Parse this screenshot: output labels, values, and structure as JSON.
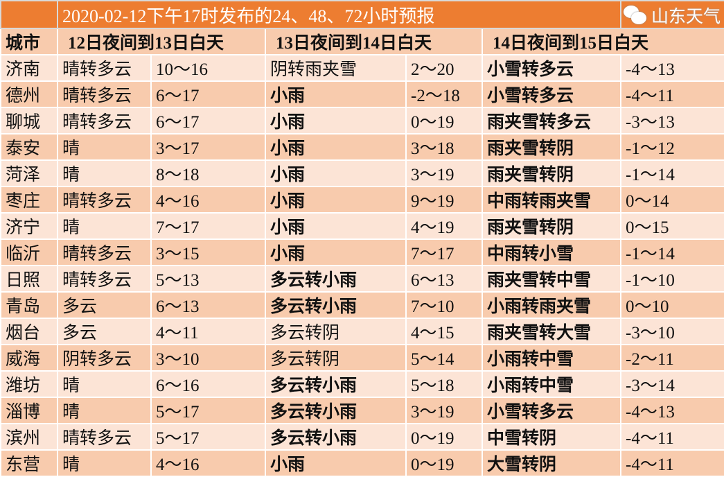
{
  "title": "2020-02-12下午17时发布的24、48、72小时预报",
  "headers": {
    "city": "城市",
    "p1": "12日夜间到13日白天",
    "p2": "13日夜间到14日白天",
    "p3": "14日夜间到15日白天"
  },
  "rows": [
    {
      "city": "济南",
      "w1": "晴转多云",
      "t1": "10～16",
      "w2": "阴转雨夹雪",
      "t2": "2～20",
      "w3": "小雪转多云",
      "t3": "-4～13"
    },
    {
      "city": "德州",
      "w1": "晴转多云",
      "t1": "6～17",
      "w2": "小雨",
      "t2": "-2～18",
      "w3": "小雪转多云",
      "t3": "-4～11"
    },
    {
      "city": "聊城",
      "w1": "晴转多云",
      "t1": "6～17",
      "w2": "小雨",
      "t2": "0～19",
      "w3": "雨夹雪转多云",
      "t3": "-3～13"
    },
    {
      "city": "泰安",
      "w1": "晴",
      "t1": "3～17",
      "w2": "小雨",
      "t2": "3～18",
      "w3": "雨夹雪转阴",
      "t3": "-1～12"
    },
    {
      "city": "菏泽",
      "w1": "晴",
      "t1": "8～18",
      "w2": "小雨",
      "t2": "3～19",
      "w3": "雨夹雪转阴",
      "t3": "-1～14"
    },
    {
      "city": "枣庄",
      "w1": "晴转多云",
      "t1": "4～16",
      "w2": "小雨",
      "t2": "9～19",
      "w3": "中雨转雨夹雪",
      "t3": "0～14"
    },
    {
      "city": "济宁",
      "w1": "晴",
      "t1": "7～17",
      "w2": "小雨",
      "t2": "4～19",
      "w3": "雨夹雪转阴",
      "t3": "0～15"
    },
    {
      "city": "临沂",
      "w1": "晴转多云",
      "t1": "3～15",
      "w2": "小雨",
      "t2": "7～17",
      "w3": "中雨转小雪",
      "t3": "-1～14"
    },
    {
      "city": "日照",
      "w1": "晴转多云",
      "t1": "5～13",
      "w2": "多云转小雨",
      "t2": "6～13",
      "w3": "雨夹雪转中雪",
      "t3": "-1～10"
    },
    {
      "city": "青岛",
      "w1": "多云",
      "t1": "6～13",
      "w2": "多云转小雨",
      "t2": "7～10",
      "w3": "小雨转雨夹雪",
      "t3": "0～10"
    },
    {
      "city": "烟台",
      "w1": "多云",
      "t1": "4～11",
      "w2": "多云转阴",
      "t2": "4～15",
      "w3": "雨夹雪转大雪",
      "t3": "-3～10"
    },
    {
      "city": "威海",
      "w1": "阴转多云",
      "t1": "3～10",
      "w2": "多云转阴",
      "t2": "5～14",
      "w3": "小雨转中雪",
      "t3": "-2～11"
    },
    {
      "city": "潍坊",
      "w1": "晴",
      "t1": "6～16",
      "w2": "多云转小雨",
      "t2": "5～18",
      "w3": "小雨转中雪",
      "t3": "-3～14"
    },
    {
      "city": "淄博",
      "w1": "晴",
      "t1": "5～17",
      "w2": "多云转小雨",
      "t2": "3～19",
      "w3": "小雪转多云",
      "t3": "-4～13"
    },
    {
      "city": "滨州",
      "w1": "晴转多云",
      "t1": "5～17",
      "w2": "多云转小雨",
      "t2": "0～19",
      "w3": "中雪转阴",
      "t3": "-4～11"
    },
    {
      "city": "东营",
      "w1": "晴",
      "t1": "4～16",
      "w2": "小雨",
      "t2": "0～19",
      "w3": "大雪转阴",
      "t3": "-4～11"
    }
  ],
  "watermark": "山东天气",
  "colors": {
    "title_bg": "#ED7D31",
    "row_light": "#FCE4D6",
    "row_dark": "#F8CBAD"
  }
}
